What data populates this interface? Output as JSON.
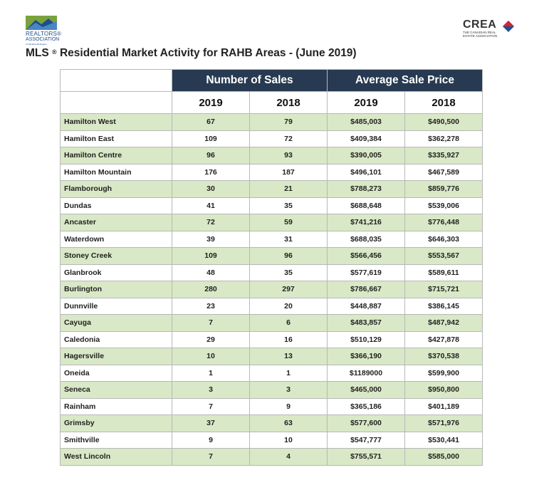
{
  "logos": {
    "left_text_line1": "REALTORS®",
    "left_text_line2": "ASSOCIATION",
    "left_text_line3": "of Hamilton-Burlington",
    "right_text": "CREA",
    "right_subtext": "THE CANADIAN REAL ESTATE ASSOCIATION",
    "colors": {
      "realtors_green": "#7aa23c",
      "realtors_blue": "#1e4e8c",
      "crea_red": "#d9232e",
      "crea_blue": "#1f4f95"
    }
  },
  "title": {
    "prefix": "MLS",
    "reg": "®",
    "text": " Residential Market Activity for RAHB Areas - (June 2019)"
  },
  "table": {
    "group_headers": [
      "Number of Sales",
      "Average Sale Price"
    ],
    "year_headers": [
      "2019",
      "2018",
      "2019",
      "2018"
    ],
    "rows": [
      {
        "area": "Hamilton West",
        "sales_2019": "67",
        "sales_2018": "79",
        "price_2019": "$485,003",
        "price_2018": "$490,500"
      },
      {
        "area": "Hamilton East",
        "sales_2019": "109",
        "sales_2018": "72",
        "price_2019": "$409,384",
        "price_2018": "$362,278"
      },
      {
        "area": "Hamilton Centre",
        "sales_2019": "96",
        "sales_2018": "93",
        "price_2019": "$390,005",
        "price_2018": "$335,927"
      },
      {
        "area": "Hamilton Mountain",
        "sales_2019": "176",
        "sales_2018": "187",
        "price_2019": "$496,101",
        "price_2018": "$467,589"
      },
      {
        "area": "Flamborough",
        "sales_2019": "30",
        "sales_2018": "21",
        "price_2019": "$788,273",
        "price_2018": "$859,776"
      },
      {
        "area": "Dundas",
        "sales_2019": "41",
        "sales_2018": "35",
        "price_2019": "$688,648",
        "price_2018": "$539,006"
      },
      {
        "area": "Ancaster",
        "sales_2019": "72",
        "sales_2018": "59",
        "price_2019": "$741,216",
        "price_2018": "$776,448"
      },
      {
        "area": "Waterdown",
        "sales_2019": "39",
        "sales_2018": "31",
        "price_2019": "$688,035",
        "price_2018": "$646,303"
      },
      {
        "area": "Stoney Creek",
        "sales_2019": "109",
        "sales_2018": "96",
        "price_2019": "$566,456",
        "price_2018": "$553,567"
      },
      {
        "area": "Glanbrook",
        "sales_2019": "48",
        "sales_2018": "35",
        "price_2019": "$577,619",
        "price_2018": "$589,611"
      },
      {
        "area": "Burlington",
        "sales_2019": "280",
        "sales_2018": "297",
        "price_2019": "$786,667",
        "price_2018": "$715,721"
      },
      {
        "area": "Dunnville",
        "sales_2019": "23",
        "sales_2018": "20",
        "price_2019": "$448,887",
        "price_2018": "$386,145"
      },
      {
        "area": "Cayuga",
        "sales_2019": "7",
        "sales_2018": "6",
        "price_2019": "$483,857",
        "price_2018": "$487,942"
      },
      {
        "area": "Caledonia",
        "sales_2019": "29",
        "sales_2018": "16",
        "price_2019": "$510,129",
        "price_2018": "$427,878"
      },
      {
        "area": "Hagersville",
        "sales_2019": "10",
        "sales_2018": "13",
        "price_2019": "$366,190",
        "price_2018": "$370,538"
      },
      {
        "area": "Oneida",
        "sales_2019": "1",
        "sales_2018": "1",
        "price_2019": "$1189000",
        "price_2018": "$599,900"
      },
      {
        "area": "Seneca",
        "sales_2019": "3",
        "sales_2018": "3",
        "price_2019": "$465,000",
        "price_2018": "$950,800"
      },
      {
        "area": "Rainham",
        "sales_2019": "7",
        "sales_2018": "9",
        "price_2019": "$365,186",
        "price_2018": "$401,189"
      },
      {
        "area": "Grimsby",
        "sales_2019": "37",
        "sales_2018": "63",
        "price_2019": "$577,600",
        "price_2018": "$571,976"
      },
      {
        "area": "Smithville",
        "sales_2019": "9",
        "sales_2018": "10",
        "price_2019": "$547,777",
        "price_2018": "$530,441"
      },
      {
        "area": "West Lincoln",
        "sales_2019": "7",
        "sales_2018": "4",
        "price_2019": "$755,571",
        "price_2018": "$585,000"
      }
    ],
    "colors": {
      "header_navy": "#273a51",
      "row_green": "#d9e8c6",
      "row_white": "#ffffff"
    }
  }
}
